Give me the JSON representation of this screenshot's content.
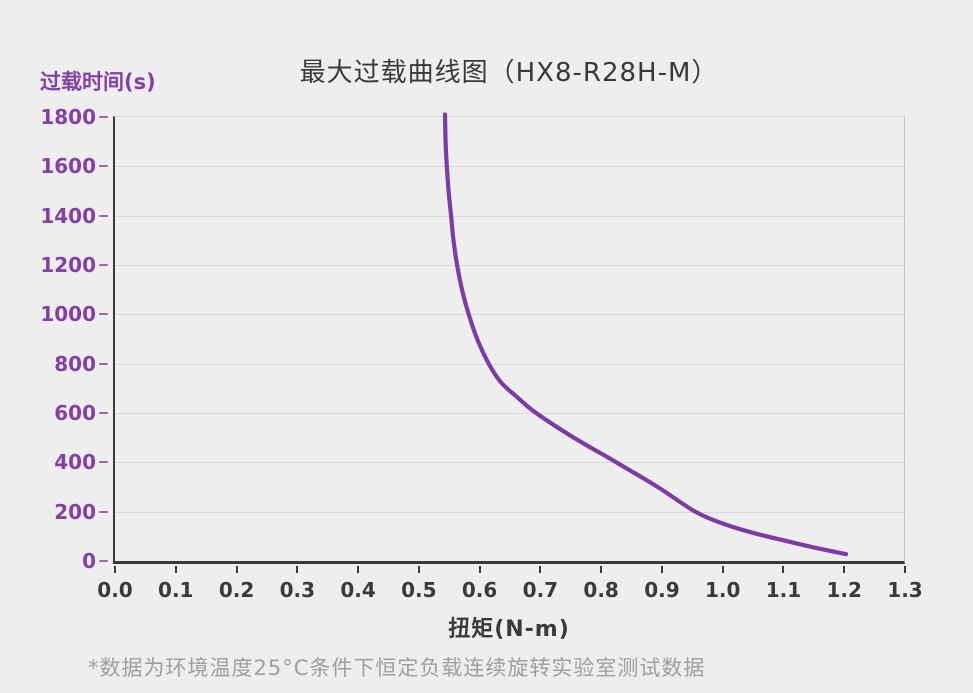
{
  "title": "最大过载曲线图（HX8-R28H-M）",
  "footnote": "*数据为环境温度25°C条件下恒定负载连续旋转实验室测试数据",
  "colors": {
    "background": "#eeeeee",
    "axis": "#3a3a3a",
    "grid": "#d8d8d8",
    "plot_right_border": "#c3c3c3",
    "purple_label": "#8540a8",
    "purple_tick_dash": "#9b63bd",
    "curve": "#7d3ca3",
    "x_tick_label": "#3a3a3a",
    "footnote_text": "#a19e9c",
    "title_text": "#3c3837"
  },
  "chart_data": {
    "type": "line",
    "title": "最大过载曲线图（HX8-R28H-M）",
    "xlabel": "扭矩(N-m)",
    "ylabel": "过载时间(s)",
    "xlim": [
      0.0,
      1.3
    ],
    "ylim": [
      0,
      1800
    ],
    "x_ticks": [
      "0.0",
      "0.1",
      "0.2",
      "0.3",
      "0.4",
      "0.5",
      "0.6",
      "0.7",
      "0.8",
      "0.9",
      "1.0",
      "1.1",
      "1.2",
      "1.3"
    ],
    "y_ticks": [
      0,
      200,
      400,
      600,
      800,
      1000,
      1200,
      1400,
      1600,
      1800
    ],
    "grid": "horizontal",
    "legend": "none",
    "annotation": "*数据为环境温度25°C条件下恒定负载连续旋转实验室测试数据",
    "series": [
      {
        "name": "最大过载曲线",
        "color": "#7d3ca3",
        "points": [
          [
            0.543,
            1810
          ],
          [
            0.544,
            1700
          ],
          [
            0.546,
            1600
          ],
          [
            0.549,
            1500
          ],
          [
            0.553,
            1400
          ],
          [
            0.557,
            1300
          ],
          [
            0.563,
            1200
          ],
          [
            0.571,
            1100
          ],
          [
            0.582,
            1000
          ],
          [
            0.596,
            900
          ],
          [
            0.615,
            800
          ],
          [
            0.635,
            725
          ],
          [
            0.66,
            668
          ],
          [
            0.693,
            600
          ],
          [
            0.755,
            500
          ],
          [
            0.825,
            400
          ],
          [
            0.893,
            300
          ],
          [
            0.955,
            200
          ],
          [
            1.0,
            152
          ],
          [
            1.05,
            114
          ],
          [
            1.1,
            84
          ],
          [
            1.15,
            55
          ],
          [
            1.203,
            28
          ]
        ]
      }
    ]
  }
}
